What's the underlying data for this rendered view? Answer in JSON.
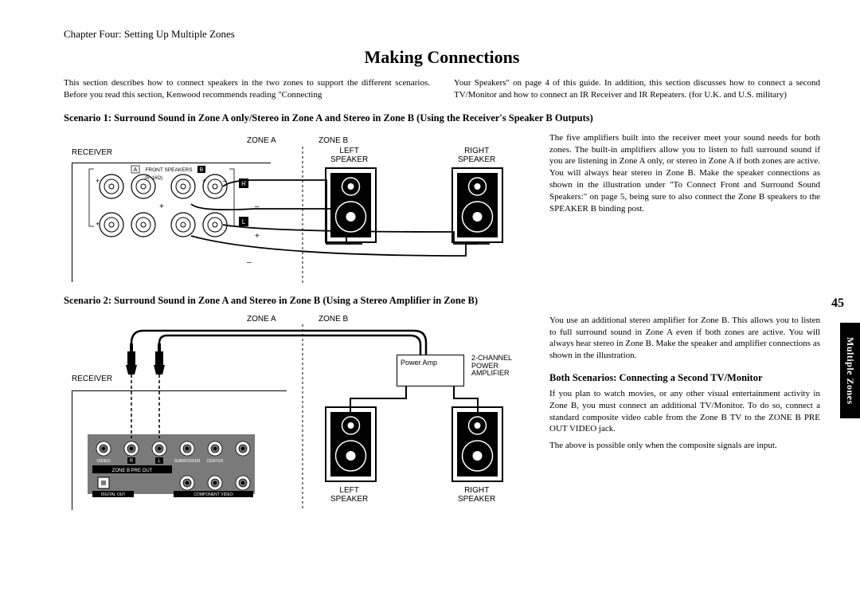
{
  "chapter": "Chapter Four: Setting Up Multiple Zones",
  "title": "Making Connections",
  "intro": {
    "col1": "This section describes how to connect speakers in the two zones to support the different scenarios. Before you read this section, Kenwood recommends reading \"Connecting",
    "col2": "Your Speakers\" on page 4 of this guide. In addition, this section discusses how to connect a second TV/Monitor and how to connect an IR Receiver and IR Repeaters. (for U.K. and U.S. military)"
  },
  "scenario1": {
    "heading": "Scenario 1: Surround Sound in Zone A only/Stereo in Zone A and Stereo in Zone B (Using the Receiver's Speaker B Outputs)",
    "diagram": {
      "zone_a": "ZONE A",
      "zone_b": "ZONE B",
      "receiver": "RECEIVER",
      "left_speaker": "LEFT\nSPEAKER",
      "right_speaker": "RIGHT\nSPEAKER",
      "panel_label_a": "A",
      "panel_label_b": "B",
      "panel_text": "FRONT SPEAKERS",
      "impedance": "(6~16Ω)",
      "r_label": "R",
      "l_label": "L"
    },
    "text": "The five amplifiers built into the receiver meet your sound needs for both zones. The built-in amplifiers allow you to listen to full surround sound if you are listening in Zone A only, or stereo in Zone A if both zones are active. You will always hear stereo in Zone B. Make the speaker connections as shown in the illustration under \"To Connect Front and Surround Sound Speakers:\" on page 5, being sure to also connect the Zone B speakers to the SPEAKER B binding post."
  },
  "scenario2": {
    "heading": "Scenario 2: Surround Sound in Zone A and Stereo in Zone B (Using a Stereo Amplifier in Zone B)",
    "diagram": {
      "zone_a": "ZONE A",
      "zone_b": "ZONE B",
      "receiver": "RECEIVER",
      "power_amp": "Power Amp",
      "amp_label": "2-CHANNEL\nPOWER\nAMPLIFIER",
      "left_speaker": "LEFT\nSPEAKER",
      "right_speaker": "RIGHT\nSPEAKER",
      "row_video": "VIDEO",
      "row_r": "R",
      "row_l": "L",
      "row_sub": "SUBWOOFER",
      "row_center": "CENTER",
      "strip_zone_b": "ZONE B PRE OUT",
      "strip_digital": "DIGITAL OUT",
      "strip_component": "COMPONENT VIDEO"
    },
    "text1": "You use an additional stereo amplifier for Zone B. This allows you to listen to full surround sound in Zone A even if both zones are active. You will always hear stereo in Zone B. Make the speaker and amplifier connections as shown in the illustration.",
    "sub_heading": "Both Scenarios: Connecting a Second TV/Monitor",
    "text2": "If you plan to watch movies, or any other visual entertainment activity in Zone B, you must connect an additional TV/Monitor. To do so, connect a standard composite video cable from the Zone B TV to the ZONE B PRE OUT VIDEO jack.",
    "text3": "The above is possible only when the composite signals are input."
  },
  "page_number": "45",
  "side_tab": "Multiple Zones",
  "colors": {
    "black": "#000000",
    "white": "#ffffff",
    "gray_panel": "#7a7a7a",
    "dark_strip": "#1a1a1a"
  }
}
